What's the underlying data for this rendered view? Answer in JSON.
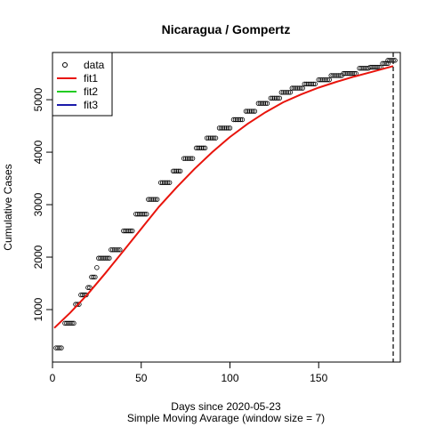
{
  "chart_data": {
    "type": "scatter",
    "title": "Nicaragua / Gompertz",
    "xlabel": "Days since 2020-05-23",
    "subtitle": "Simple Moving Avarage (window size = 7)",
    "ylabel": "Cumulative Cases",
    "xlim": [
      0,
      196
    ],
    "ylim": [
      0,
      5900
    ],
    "x_ticks": [
      0,
      50,
      100,
      150
    ],
    "y_ticks": [
      1000,
      2000,
      3000,
      4000,
      5000
    ],
    "vline_x": 192,
    "legend": {
      "position": "top-left",
      "entries": [
        {
          "name": "data",
          "color": "#000000",
          "kind": "point"
        },
        {
          "name": "fit1",
          "color": "#e8140c",
          "kind": "line"
        },
        {
          "name": "fit2",
          "color": "#22cc22",
          "kind": "line"
        },
        {
          "name": "fit3",
          "color": "#1a1aaa",
          "kind": "line"
        }
      ]
    },
    "data_steps": [
      [
        2,
        5,
        270
      ],
      [
        7,
        12,
        740
      ],
      [
        13,
        15,
        1100
      ],
      [
        16,
        19,
        1280
      ],
      [
        20,
        21,
        1420
      ],
      [
        22,
        24,
        1620
      ],
      [
        25,
        25,
        1800
      ],
      [
        26,
        32,
        1980
      ],
      [
        33,
        38,
        2140
      ],
      [
        40,
        45,
        2500
      ],
      [
        47,
        53,
        2820
      ],
      [
        54,
        59,
        3100
      ],
      [
        61,
        66,
        3420
      ],
      [
        68,
        72,
        3640
      ],
      [
        74,
        79,
        3880
      ],
      [
        81,
        86,
        4080
      ],
      [
        87,
        92,
        4270
      ],
      [
        94,
        100,
        4460
      ],
      [
        102,
        107,
        4620
      ],
      [
        109,
        114,
        4780
      ],
      [
        116,
        121,
        4930
      ],
      [
        123,
        128,
        5030
      ],
      [
        129,
        134,
        5140
      ],
      [
        135,
        141,
        5220
      ],
      [
        142,
        148,
        5300
      ],
      [
        150,
        156,
        5380
      ],
      [
        157,
        163,
        5460
      ],
      [
        164,
        171,
        5500
      ],
      [
        173,
        178,
        5600
      ],
      [
        179,
        185,
        5620
      ],
      [
        186,
        189,
        5690
      ],
      [
        189,
        193,
        5750
      ]
    ],
    "fit": {
      "name": "fit1",
      "model": "Gompertz",
      "color": "#e8140c",
      "x": [
        1,
        10,
        20,
        30,
        40,
        50,
        60,
        70,
        80,
        90,
        100,
        110,
        120,
        130,
        140,
        150,
        160,
        170,
        180,
        192
      ],
      "y": [
        650,
        940,
        1300,
        1700,
        2120,
        2540,
        2960,
        3330,
        3680,
        4000,
        4290,
        4540,
        4760,
        4950,
        5100,
        5230,
        5340,
        5440,
        5530,
        5640
      ]
    }
  }
}
